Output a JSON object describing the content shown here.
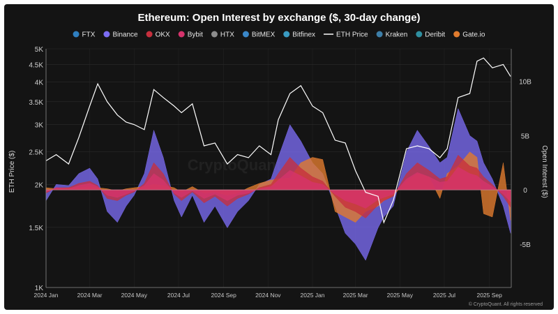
{
  "chart_data": {
    "type": "area",
    "title": "Ethereum: Open Interest by exchange ($, 30-day change)",
    "ylabel_left": "ETH Price ($)",
    "ylabel_right": "Open Interest ($)",
    "y_left_scale": "log",
    "y_left_range": [
      1000,
      5000
    ],
    "y_left_ticks": [
      "5K",
      "4.5K",
      "4K",
      "3.5K",
      "3K",
      "2.5K",
      "2K",
      "1.5K",
      "1K"
    ],
    "y_left_tick_values": [
      5000,
      4500,
      4000,
      3500,
      3000,
      2500,
      2000,
      1500,
      1000
    ],
    "y_right_range": [
      -9000000000,
      13000000000
    ],
    "y_right_ticks": [
      "10B",
      "5B",
      "0",
      "-5B"
    ],
    "y_right_tick_values": [
      10000000000,
      5000000000,
      0,
      -5000000000
    ],
    "x_ticks": [
      "2024 Jan",
      "2024 Mar",
      "2024 May",
      "2024 Jul",
      "2024 Sep",
      "2024 Nov",
      "2025 Jan",
      "2025 Mar",
      "2025 May",
      "2025 Jul",
      "2025 Sep"
    ],
    "x_range": [
      "2024-01-01",
      "2025-10-01"
    ],
    "legend": [
      {
        "name": "FTX",
        "color": "#2f7fc0",
        "marker": "dot"
      },
      {
        "name": "Binance",
        "color": "#7b6cf2",
        "marker": "dot"
      },
      {
        "name": "OKX",
        "color": "#c62f3d",
        "marker": "dot"
      },
      {
        "name": "Bybit",
        "color": "#d6336c",
        "marker": "dot"
      },
      {
        "name": "HTX",
        "color": "#8c8c8c",
        "marker": "dot"
      },
      {
        "name": "BitMEX",
        "color": "#3a87c8",
        "marker": "dot"
      },
      {
        "name": "Bitfinex",
        "color": "#3a9bc2",
        "marker": "dot"
      },
      {
        "name": "ETH Price",
        "color": "#ffffff",
        "marker": "line"
      },
      {
        "name": "Kraken",
        "color": "#3d7ea8",
        "marker": "dot"
      },
      {
        "name": "Deribit",
        "color": "#2f8fa0",
        "marker": "dot"
      },
      {
        "name": "Gate.io",
        "color": "#e07b2e",
        "marker": "dot"
      }
    ],
    "eth_price": {
      "name": "ETH Price",
      "x": [
        "2024-01-01",
        "2024-01-15",
        "2024-02-01",
        "2024-02-15",
        "2024-03-01",
        "2024-03-12",
        "2024-03-25",
        "2024-04-08",
        "2024-04-20",
        "2024-05-01",
        "2024-05-15",
        "2024-05-28",
        "2024-06-10",
        "2024-06-25",
        "2024-07-05",
        "2024-07-20",
        "2024-08-05",
        "2024-08-20",
        "2024-09-06",
        "2024-09-20",
        "2024-10-05",
        "2024-10-20",
        "2024-11-05",
        "2024-11-15",
        "2024-12-01",
        "2024-12-16",
        "2025-01-01",
        "2025-01-15",
        "2025-02-01",
        "2025-02-15",
        "2025-03-01",
        "2025-03-15",
        "2025-04-01",
        "2025-04-09",
        "2025-04-22",
        "2025-05-10",
        "2025-05-25",
        "2025-06-10",
        "2025-06-25",
        "2025-07-05",
        "2025-07-20",
        "2025-08-05",
        "2025-08-15",
        "2025-08-24",
        "2025-09-05",
        "2025-09-20",
        "2025-09-30"
      ],
      "y": [
        2350,
        2450,
        2300,
        2750,
        3400,
        3950,
        3500,
        3200,
        3050,
        3000,
        2900,
        3800,
        3600,
        3400,
        3250,
        3450,
        2600,
        2650,
        2300,
        2450,
        2400,
        2600,
        2450,
        3100,
        3700,
        3900,
        3400,
        3250,
        2700,
        2650,
        2200,
        1900,
        1850,
        1550,
        1800,
        2550,
        2600,
        2550,
        2400,
        2550,
        3600,
        3700,
        4600,
        4700,
        4400,
        4500,
        4150
      ]
    },
    "open_interest_change": {
      "note_units": "USD",
      "x": [
        "2024-01-01",
        "2024-01-15",
        "2024-02-01",
        "2024-02-15",
        "2024-03-01",
        "2024-03-12",
        "2024-03-25",
        "2024-04-08",
        "2024-04-20",
        "2024-05-01",
        "2024-05-15",
        "2024-05-28",
        "2024-06-10",
        "2024-06-25",
        "2024-07-05",
        "2024-07-20",
        "2024-08-05",
        "2024-08-20",
        "2024-09-06",
        "2024-09-20",
        "2024-10-05",
        "2024-10-20",
        "2024-11-05",
        "2024-11-15",
        "2024-12-01",
        "2024-12-16",
        "2025-01-01",
        "2025-01-15",
        "2025-02-01",
        "2025-02-15",
        "2025-03-01",
        "2025-03-15",
        "2025-04-01",
        "2025-04-09",
        "2025-04-22",
        "2025-05-10",
        "2025-05-25",
        "2025-06-10",
        "2025-06-25",
        "2025-07-05",
        "2025-07-20",
        "2025-08-05",
        "2025-08-15",
        "2025-08-24",
        "2025-09-05",
        "2025-09-20",
        "2025-09-30"
      ],
      "series": [
        {
          "name": "Binance",
          "values": [
            -1000000000,
            500000000,
            400000000,
            1500000000,
            2000000000,
            1000000000,
            -2000000000,
            -3000000000,
            -1500000000,
            -500000000,
            1500000000,
            5500000000,
            3000000000,
            -1000000000,
            -2500000000,
            -500000000,
            -3000000000,
            -1500000000,
            -3500000000,
            -2000000000,
            -1000000000,
            500000000,
            1000000000,
            3000000000,
            6000000000,
            4500000000,
            2500000000,
            1500000000,
            -1500000000,
            -4000000000,
            -5000000000,
            -6500000000,
            -3500000000,
            -2500000000,
            -1500000000,
            3500000000,
            5500000000,
            4000000000,
            2500000000,
            3000000000,
            7500000000,
            5000000000,
            4500000000,
            2500000000,
            1000000000,
            -1500000000,
            -4000000000
          ]
        },
        {
          "name": "OKX",
          "values": [
            -300000000,
            200000000,
            200000000,
            600000000,
            800000000,
            400000000,
            -800000000,
            -1000000000,
            -500000000,
            -200000000,
            600000000,
            2500000000,
            1500000000,
            -400000000,
            -1000000000,
            -200000000,
            -1200000000,
            -600000000,
            -1500000000,
            -800000000,
            -400000000,
            200000000,
            500000000,
            1500000000,
            3000000000,
            2000000000,
            1200000000,
            800000000,
            -600000000,
            -1600000000,
            -2000000000,
            -2600000000,
            -1400000000,
            -1000000000,
            -600000000,
            1500000000,
            2500000000,
            1800000000,
            1000000000,
            1200000000,
            3200000000,
            2200000000,
            2000000000,
            1200000000,
            500000000,
            -600000000,
            -1600000000
          ]
        },
        {
          "name": "Bybit",
          "values": [
            -200000000,
            200000000,
            100000000,
            400000000,
            600000000,
            300000000,
            -500000000,
            -700000000,
            -400000000,
            -100000000,
            400000000,
            1500000000,
            900000000,
            -300000000,
            -700000000,
            -100000000,
            -800000000,
            -400000000,
            -1000000000,
            -500000000,
            -300000000,
            100000000,
            300000000,
            900000000,
            1800000000,
            1300000000,
            700000000,
            500000000,
            -400000000,
            -1000000000,
            -1300000000,
            -1700000000,
            -900000000,
            -700000000,
            -400000000,
            1000000000,
            1600000000,
            1200000000,
            700000000,
            800000000,
            2100000000,
            1500000000,
            1300000000,
            800000000,
            300000000,
            -400000000,
            -1100000000
          ]
        },
        {
          "name": "Gate.io",
          "values": [
            200000000,
            100000000,
            200000000,
            200000000,
            300000000,
            200000000,
            100000000,
            -100000000,
            100000000,
            200000000,
            300000000,
            500000000,
            400000000,
            200000000,
            -200000000,
            300000000,
            -300000000,
            -200000000,
            -500000000,
            -300000000,
            200000000,
            600000000,
            900000000,
            1000000000,
            1100000000,
            2500000000,
            3000000000,
            2800000000,
            -2000000000,
            -2500000000,
            -3000000000,
            -2000000000,
            -1500000000,
            -1000000000,
            -500000000,
            800000000,
            1500000000,
            1200000000,
            -800000000,
            1500000000,
            2200000000,
            3500000000,
            3000000000,
            -2200000000,
            -2500000000,
            2500000000,
            -2800000000
          ]
        }
      ]
    }
  },
  "watermark": "CryptoQuant",
  "footer": "© CryptoQuant. All rights reserved"
}
